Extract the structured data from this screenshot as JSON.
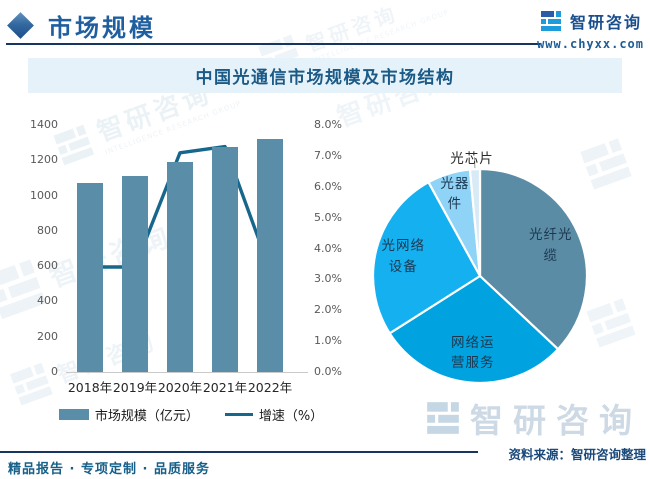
{
  "header": {
    "title": "市场规模",
    "brand": "智研咨询",
    "brand_url": "www.chyxx.com"
  },
  "footer": {
    "left": "精品报告 · 专项定制 · 品质服务",
    "source": "资料来源：智研咨询整理"
  },
  "watermark": {
    "brand": "智研咨询",
    "subtext": "INTELLIGENCE RESEARCH GROUP"
  },
  "colors": {
    "accent_blue": "#1f5fa0",
    "banner_bg": "#e6f2fa",
    "rule_navy": "#16365f",
    "bar": "#5a8da8",
    "line": "#17678c",
    "logo_azure": "#1d9bdb",
    "logo_navy": "#2a5ca8"
  },
  "chart_data": [
    {
      "type": "bar",
      "title": "中国光通信市场规模及市场结构",
      "categories": [
        "2018年",
        "2019年",
        "2020年",
        "2021年",
        "2022年"
      ],
      "series": [
        {
          "name": "市场规模（亿元）",
          "render": "bar",
          "axis": "left",
          "color": "#5a8da8",
          "values": [
            1073,
            1110,
            1189,
            1276,
            1318
          ]
        },
        {
          "name": "增速（%）",
          "render": "line",
          "axis": "right",
          "color": "#17678c",
          "values": [
            3.4,
            3.4,
            7.1,
            7.3,
            3.3
          ]
        }
      ],
      "left_axis": {
        "min": 0,
        "max": 1400,
        "ticks": [
          "0",
          "200",
          "400",
          "600",
          "800",
          "1000",
          "1200",
          "1400"
        ],
        "unit": "亿元"
      },
      "right_axis": {
        "min": 0,
        "max": 8,
        "ticks": [
          "0.0%",
          "1.0%",
          "2.0%",
          "3.0%",
          "4.0%",
          "5.0%",
          "6.0%",
          "7.0%",
          "8.0%"
        ],
        "unit": "%"
      },
      "grid": false,
      "legend_position": "bottom"
    },
    {
      "type": "pie",
      "title": "市场结构（市场份额估算，%）",
      "start_angle": 0,
      "legend_position": "none",
      "slices": [
        {
          "label": "光纤光缆",
          "lines": [
            "光纤光",
            "缆"
          ],
          "value": 37,
          "color": "#5b8ca6"
        },
        {
          "label": "网络运营服务",
          "lines": [
            "网络运",
            "营服务"
          ],
          "value": 29,
          "color": "#00a3e0"
        },
        {
          "label": "光网络设备",
          "lines": [
            "光网络",
            "设备"
          ],
          "value": 26,
          "color": "#14b0f0"
        },
        {
          "label": "光器件",
          "lines": [
            "光器",
            "件"
          ],
          "value": 6.5,
          "color": "#8fd3f6"
        },
        {
          "label": "光芯片",
          "lines": [
            "光芯片"
          ],
          "value": 1.5,
          "color": "#d8eaf5",
          "outside": true
        }
      ]
    }
  ]
}
